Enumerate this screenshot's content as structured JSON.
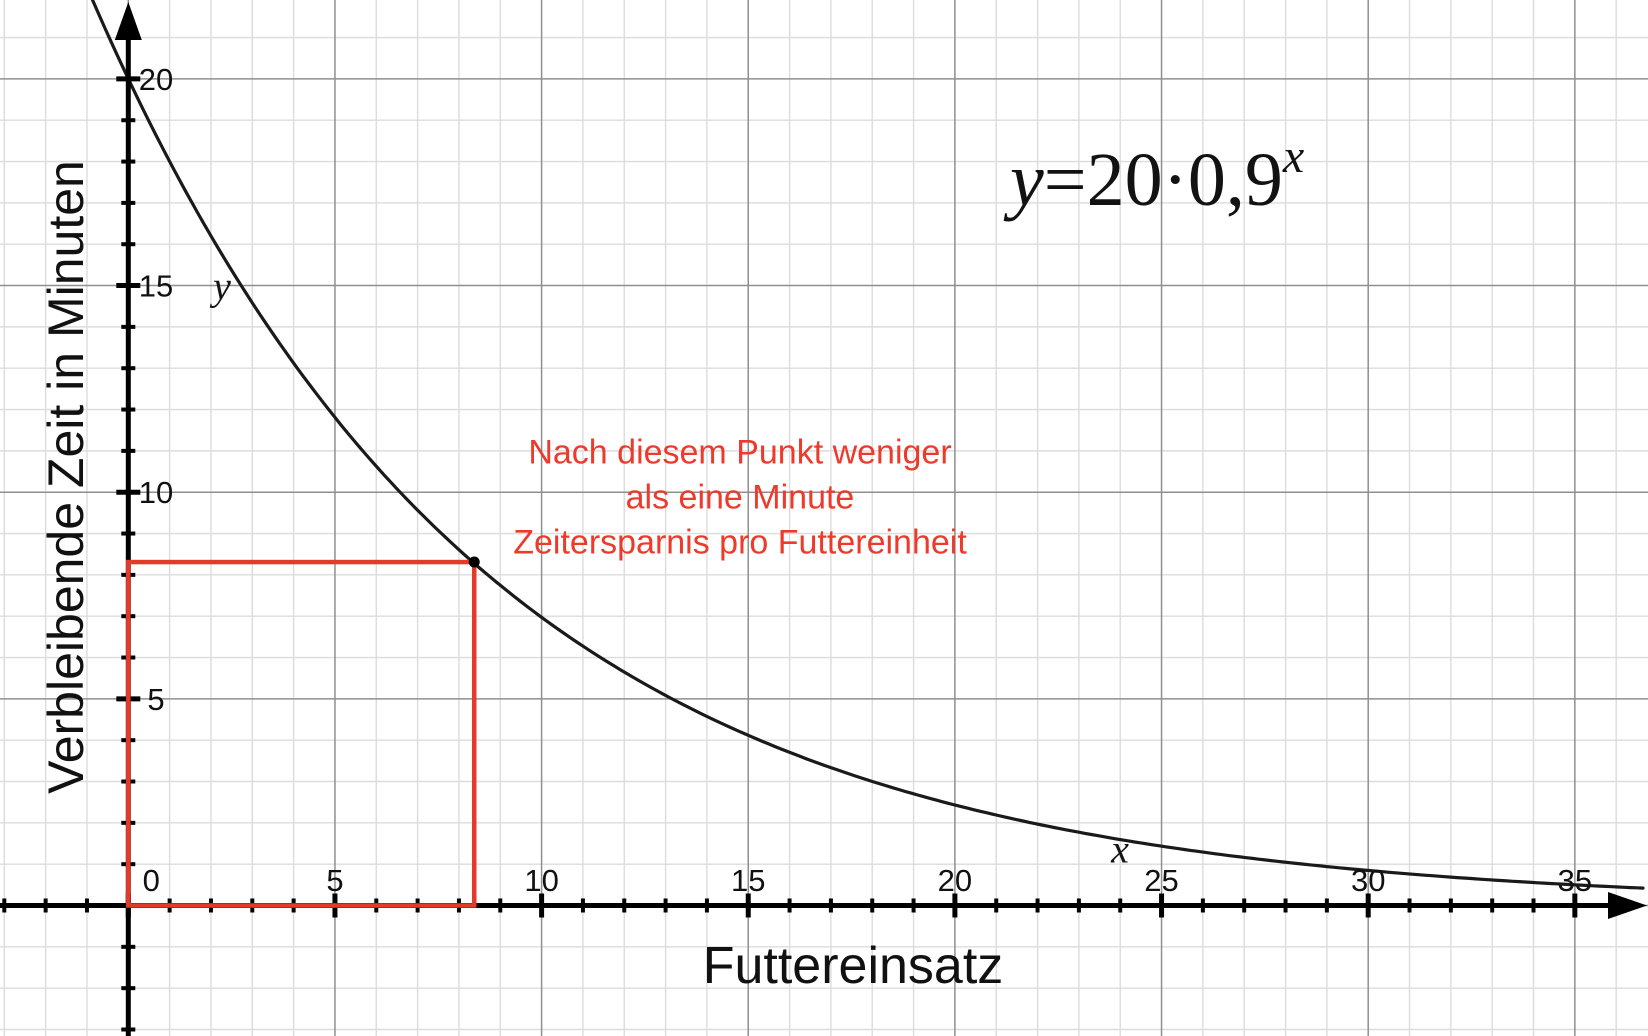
{
  "chart_data": {
    "type": "line",
    "title": "",
    "formula": {
      "lhs": "y",
      "body": "=20·0,9",
      "exponent": "x",
      "plain": "y = 20 · 0,9^x"
    },
    "xlabel": "Futtereinsatz",
    "ylabel": "Verbleibende Zeit in Minuten",
    "curve_labels": {
      "x": "x",
      "y": "y"
    },
    "function": {
      "type": "exponential-decay",
      "initial_value": 20,
      "base": 0.9
    },
    "x_tick_labels": [
      0,
      5,
      10,
      15,
      20,
      25,
      30,
      35
    ],
    "y_tick_labels": [
      5,
      10,
      15,
      20
    ],
    "xlim": [
      -3.1,
      36.77
    ],
    "ylim": [
      -3.16,
      21.91
    ],
    "minor_step": 1,
    "major_step": 5,
    "grid": true,
    "legend": false,
    "series_sample": {
      "name": "Verbleibende Zeit y = 20·0,9^x",
      "x": [
        0,
        2,
        4,
        6,
        8,
        10,
        12,
        14,
        16,
        18,
        20,
        22,
        24,
        26,
        28,
        30,
        32,
        34,
        36
      ],
      "y": [
        20.0,
        16.2,
        13.12,
        10.63,
        8.61,
        6.97,
        5.65,
        4.58,
        3.71,
        3.0,
        2.43,
        1.97,
        1.6,
        1.29,
        1.05,
        0.85,
        0.69,
        0.56,
        0.45
      ]
    },
    "highlight": {
      "point": {
        "x": 8.37,
        "y": 8.31
      },
      "rectangle_from_origin_to_point": true
    },
    "annotation": {
      "lines": [
        "Nach diesem Punkt weniger",
        "als eine Minute",
        "Zeitersparnis pro Futtereinheit"
      ]
    },
    "colors": {
      "background": "#ffffff",
      "curve": "#1a1a1a",
      "axis": "#000000",
      "minor_grid": "#dcdcdc",
      "major_grid": "#8f8f8f",
      "highlight_red": "#e23b2c",
      "annotation_text": "#ed3a2b"
    }
  }
}
